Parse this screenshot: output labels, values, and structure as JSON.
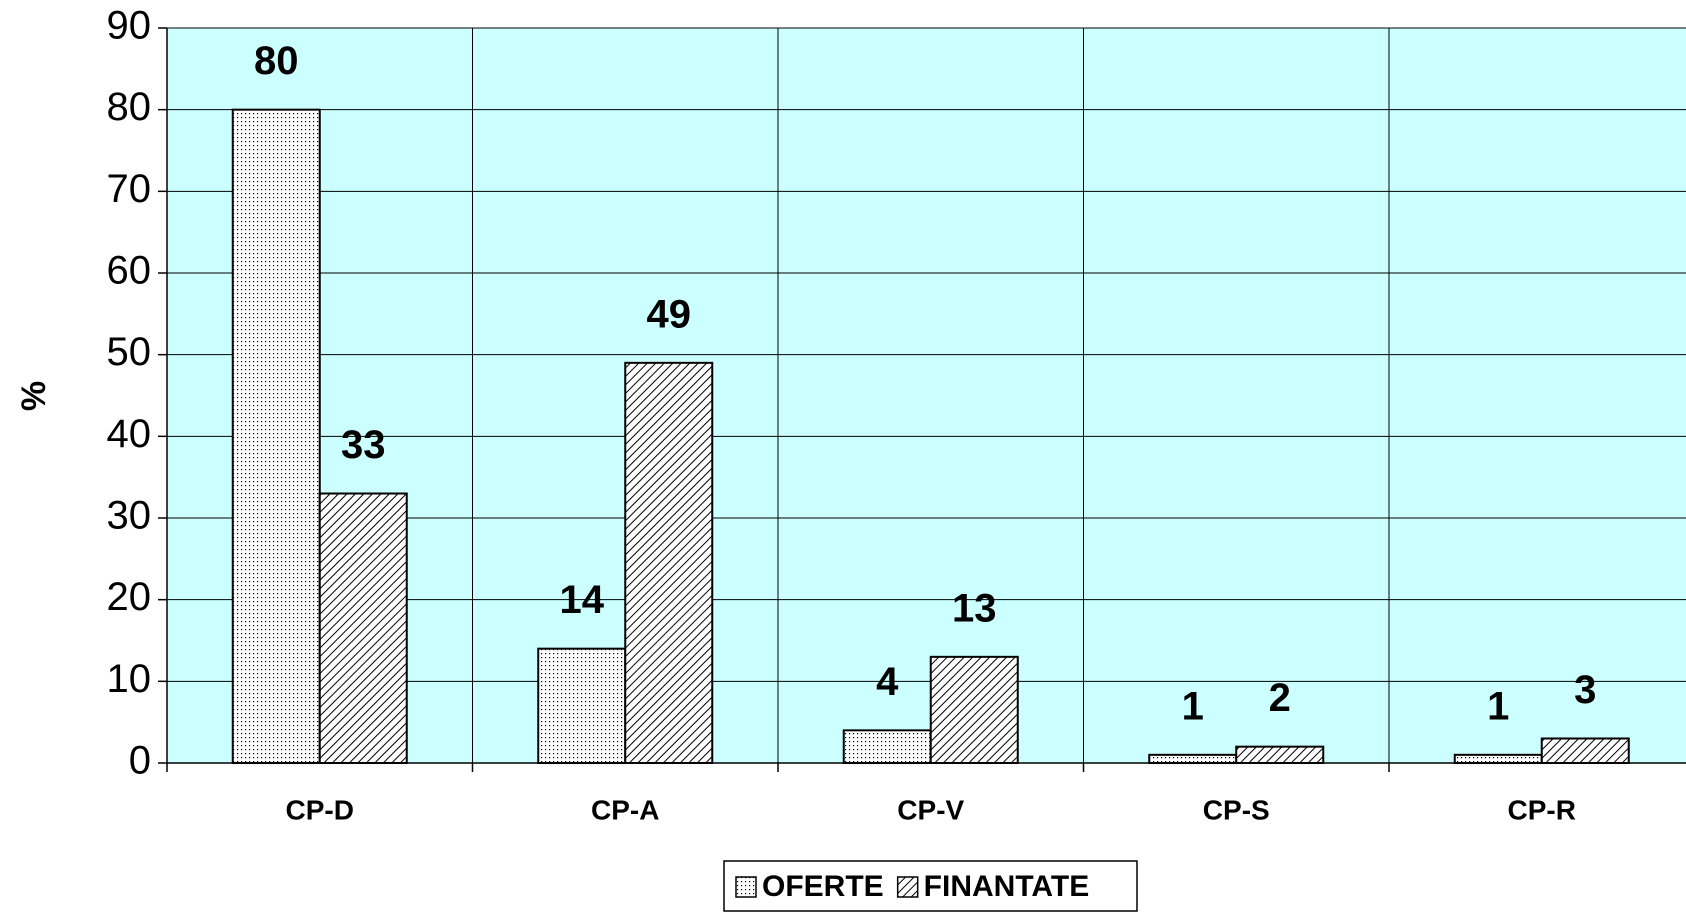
{
  "chart_data": {
    "type": "bar",
    "y_label": "%",
    "categories": [
      "CP-D",
      "CP-A",
      "CP-V",
      "CP-S",
      "CP-R"
    ],
    "series": [
      {
        "name": "OFERTE",
        "color": "#000000",
        "values": [
          80,
          14,
          4,
          1,
          1
        ]
      },
      {
        "name": "FINANTATE",
        "color": "#000000",
        "values": [
          33,
          49,
          13,
          2,
          3
        ]
      }
    ],
    "ylim": [
      0,
      90
    ],
    "yticks": [
      0,
      10,
      20,
      30,
      40,
      50,
      60,
      70,
      80,
      90
    ],
    "grid": true,
    "background": "#ccffff",
    "legend": "bottom"
  }
}
